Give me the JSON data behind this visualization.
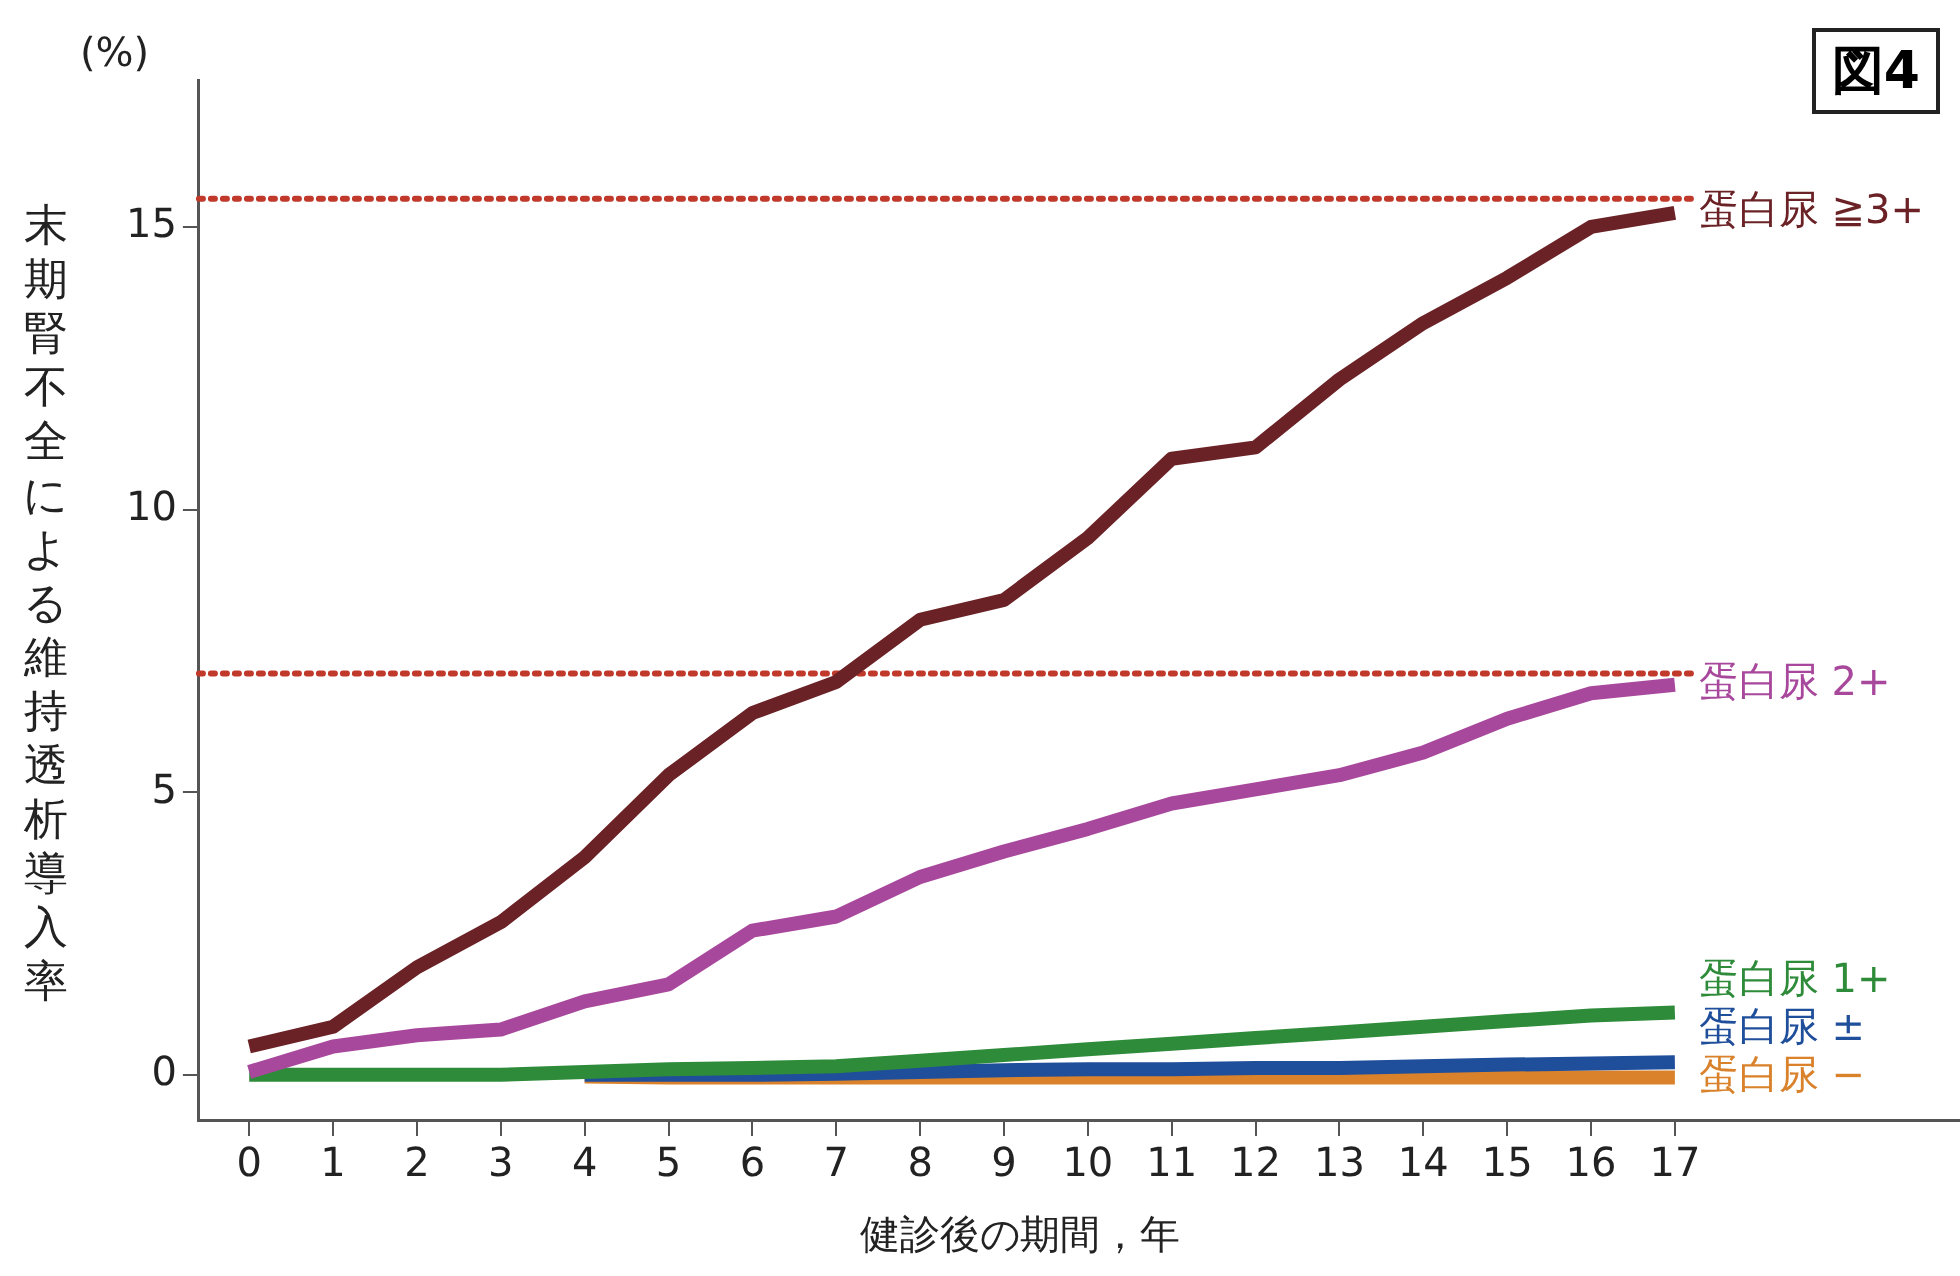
{
  "chart_data": {
    "type": "line",
    "xlabel": "健診後の期間，年",
    "ylabel": "末期腎不全による維持透析導入率",
    "annotations": [
      "(%)",
      "図4"
    ],
    "x": [
      0,
      1,
      2,
      3,
      4,
      5,
      6,
      7,
      8,
      9,
      10,
      11,
      12,
      13,
      14,
      15,
      16,
      17
    ],
    "series": [
      {
        "name": "蛋白尿 ≧3+",
        "color": "#6b2226",
        "values": [
          0.5,
          0.85,
          1.9,
          2.7,
          3.85,
          5.3,
          6.4,
          6.95,
          8.05,
          8.4,
          9.5,
          10.9,
          11.1,
          12.3,
          13.3,
          14.1,
          15.0,
          15.25
        ]
      },
      {
        "name": "蛋白尿 2+",
        "color": "#a8489c",
        "values": [
          0.05,
          0.5,
          0.7,
          0.8,
          1.3,
          1.6,
          2.55,
          2.8,
          3.5,
          3.95,
          4.35,
          4.8,
          5.05,
          5.3,
          5.7,
          6.3,
          6.75,
          6.9
        ]
      },
      {
        "name": "蛋白尿 1+",
        "color": "#2e8b3a",
        "values": [
          0,
          0,
          0,
          0,
          0.05,
          0.1,
          0.12,
          0.15,
          0.25,
          0.35,
          0.45,
          0.55,
          0.65,
          0.75,
          0.85,
          0.95,
          1.05,
          1.1
        ]
      },
      {
        "name": "蛋白尿 ±",
        "color": "#1f4e9a",
        "values": [
          null,
          null,
          null,
          null,
          0,
          0,
          0,
          0.02,
          0.05,
          0.08,
          0.1,
          0.1,
          0.12,
          0.12,
          0.15,
          0.18,
          0.2,
          0.22
        ]
      },
      {
        "name": "蛋白尿 −",
        "color": "#d9822b",
        "values": [
          null,
          null,
          null,
          null,
          -0.03,
          -0.05,
          -0.05,
          -0.05,
          -0.05,
          -0.05,
          -0.05,
          -0.05,
          -0.05,
          -0.05,
          -0.05,
          -0.05,
          -0.05,
          -0.05
        ]
      }
    ],
    "ref_lines": [
      {
        "axis": "y",
        "value": 15.5,
        "color": "#c0392b",
        "line_style": "dotted"
      },
      {
        "axis": "y",
        "value": 7.1,
        "color": "#c0392b",
        "line_style": "dotted"
      }
    ],
    "xlim": [
      -0.6,
      20.4
    ],
    "xticks": [
      0,
      1,
      2,
      3,
      4,
      5,
      6,
      7,
      8,
      9,
      10,
      11,
      12,
      13,
      14,
      15,
      16,
      17
    ],
    "ylim": [
      -0.8,
      17.6
    ],
    "yticks": [
      0,
      5,
      10,
      15
    ],
    "grid": false,
    "legend": false,
    "marker": "none",
    "line_style": "solid"
  }
}
